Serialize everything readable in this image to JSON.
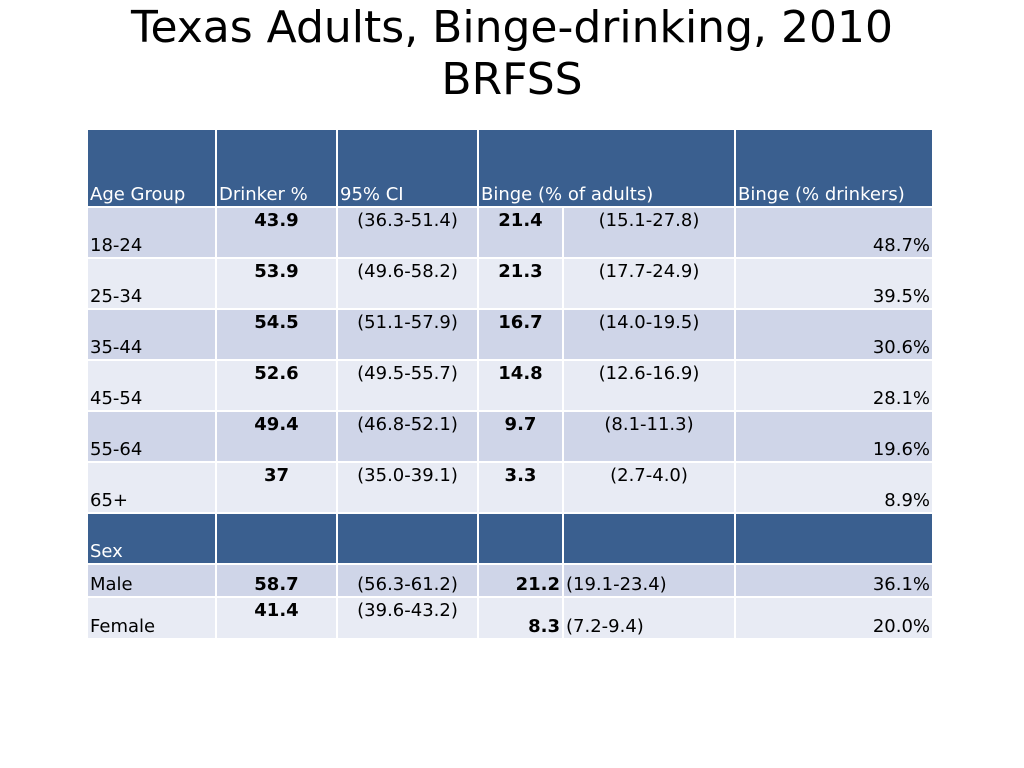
{
  "title": {
    "line1": "Texas Adults, Binge-drinking, 2010",
    "line2": "BRFSS"
  },
  "headers": [
    "Age Group",
    "Drinker %",
    "95% CI",
    "Binge (% of adults)",
    "Binge (%  drinkers)"
  ],
  "age_rows": [
    {
      "group": "18-24",
      "drinker": "43.9",
      "ci": "(36.3-51.4)",
      "binge": "21.4",
      "binge_ci": "(15.1-27.8)",
      "binge_drinkers": "48.7%"
    },
    {
      "group": "25-34",
      "drinker": "53.9",
      "ci": "(49.6-58.2)",
      "binge": "21.3",
      "binge_ci": "(17.7-24.9)",
      "binge_drinkers": "39.5%"
    },
    {
      "group": "35-44",
      "drinker": "54.5",
      "ci": "(51.1-57.9)",
      "binge": "16.7",
      "binge_ci": "(14.0-19.5)",
      "binge_drinkers": "30.6%"
    },
    {
      "group": "45-54",
      "drinker": "52.6",
      "ci": "(49.5-55.7)",
      "binge": "14.8",
      "binge_ci": "(12.6-16.9)",
      "binge_drinkers": "28.1%"
    },
    {
      "group": "55-64",
      "drinker": "49.4",
      "ci": "(46.8-52.1)",
      "binge": "9.7",
      "binge_ci": "(8.1-11.3)",
      "binge_drinkers": "19.6%"
    },
    {
      "group": "65+",
      "drinker": "37",
      "ci": "(35.0-39.1)",
      "binge": "3.3",
      "binge_ci": "(2.7-4.0)",
      "binge_drinkers": "8.9%"
    }
  ],
  "sex_header": "Sex",
  "sex_rows": [
    {
      "group": "Male",
      "drinker": "58.7",
      "ci": "(56.3-61.2)",
      "binge": "21.2",
      "binge_ci": "(19.1-23.4)",
      "binge_drinkers": "36.1%"
    },
    {
      "group": "Female",
      "drinker": "41.4",
      "ci": "(39.6-43.2)",
      "binge": "8.3",
      "binge_ci": "(7.2-9.4)",
      "binge_drinkers": "20.0%"
    }
  ],
  "colors": {
    "header_bg": "#3a5f8f",
    "row_dark": "#cfd5e8",
    "row_light": "#e8ebf4"
  }
}
